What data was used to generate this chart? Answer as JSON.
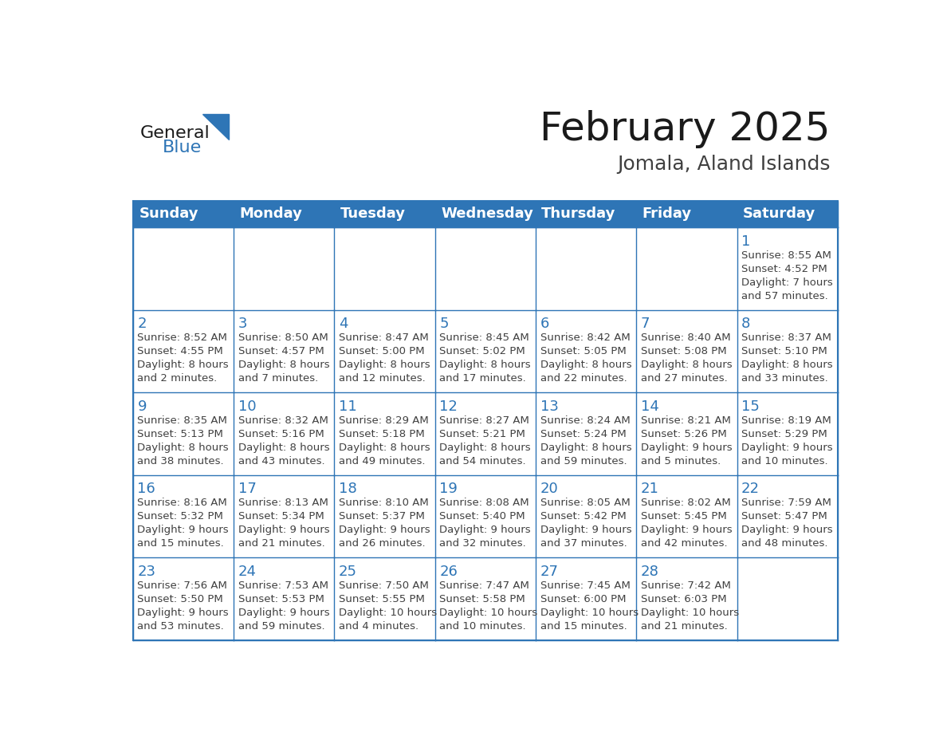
{
  "title": "February 2025",
  "subtitle": "Jomala, Aland Islands",
  "header_bg_color": "#2E75B6",
  "header_text_color": "#FFFFFF",
  "cell_border_color": "#2E75B6",
  "day_number_color": "#2E75B6",
  "info_text_color": "#404040",
  "background_color": "#FFFFFF",
  "days_of_week": [
    "Sunday",
    "Monday",
    "Tuesday",
    "Wednesday",
    "Thursday",
    "Friday",
    "Saturday"
  ],
  "weeks": [
    [
      {
        "day": null,
        "info": null
      },
      {
        "day": null,
        "info": null
      },
      {
        "day": null,
        "info": null
      },
      {
        "day": null,
        "info": null
      },
      {
        "day": null,
        "info": null
      },
      {
        "day": null,
        "info": null
      },
      {
        "day": 1,
        "info": "Sunrise: 8:55 AM\nSunset: 4:52 PM\nDaylight: 7 hours\nand 57 minutes."
      }
    ],
    [
      {
        "day": 2,
        "info": "Sunrise: 8:52 AM\nSunset: 4:55 PM\nDaylight: 8 hours\nand 2 minutes."
      },
      {
        "day": 3,
        "info": "Sunrise: 8:50 AM\nSunset: 4:57 PM\nDaylight: 8 hours\nand 7 minutes."
      },
      {
        "day": 4,
        "info": "Sunrise: 8:47 AM\nSunset: 5:00 PM\nDaylight: 8 hours\nand 12 minutes."
      },
      {
        "day": 5,
        "info": "Sunrise: 8:45 AM\nSunset: 5:02 PM\nDaylight: 8 hours\nand 17 minutes."
      },
      {
        "day": 6,
        "info": "Sunrise: 8:42 AM\nSunset: 5:05 PM\nDaylight: 8 hours\nand 22 minutes."
      },
      {
        "day": 7,
        "info": "Sunrise: 8:40 AM\nSunset: 5:08 PM\nDaylight: 8 hours\nand 27 minutes."
      },
      {
        "day": 8,
        "info": "Sunrise: 8:37 AM\nSunset: 5:10 PM\nDaylight: 8 hours\nand 33 minutes."
      }
    ],
    [
      {
        "day": 9,
        "info": "Sunrise: 8:35 AM\nSunset: 5:13 PM\nDaylight: 8 hours\nand 38 minutes."
      },
      {
        "day": 10,
        "info": "Sunrise: 8:32 AM\nSunset: 5:16 PM\nDaylight: 8 hours\nand 43 minutes."
      },
      {
        "day": 11,
        "info": "Sunrise: 8:29 AM\nSunset: 5:18 PM\nDaylight: 8 hours\nand 49 minutes."
      },
      {
        "day": 12,
        "info": "Sunrise: 8:27 AM\nSunset: 5:21 PM\nDaylight: 8 hours\nand 54 minutes."
      },
      {
        "day": 13,
        "info": "Sunrise: 8:24 AM\nSunset: 5:24 PM\nDaylight: 8 hours\nand 59 minutes."
      },
      {
        "day": 14,
        "info": "Sunrise: 8:21 AM\nSunset: 5:26 PM\nDaylight: 9 hours\nand 5 minutes."
      },
      {
        "day": 15,
        "info": "Sunrise: 8:19 AM\nSunset: 5:29 PM\nDaylight: 9 hours\nand 10 minutes."
      }
    ],
    [
      {
        "day": 16,
        "info": "Sunrise: 8:16 AM\nSunset: 5:32 PM\nDaylight: 9 hours\nand 15 minutes."
      },
      {
        "day": 17,
        "info": "Sunrise: 8:13 AM\nSunset: 5:34 PM\nDaylight: 9 hours\nand 21 minutes."
      },
      {
        "day": 18,
        "info": "Sunrise: 8:10 AM\nSunset: 5:37 PM\nDaylight: 9 hours\nand 26 minutes."
      },
      {
        "day": 19,
        "info": "Sunrise: 8:08 AM\nSunset: 5:40 PM\nDaylight: 9 hours\nand 32 minutes."
      },
      {
        "day": 20,
        "info": "Sunrise: 8:05 AM\nSunset: 5:42 PM\nDaylight: 9 hours\nand 37 minutes."
      },
      {
        "day": 21,
        "info": "Sunrise: 8:02 AM\nSunset: 5:45 PM\nDaylight: 9 hours\nand 42 minutes."
      },
      {
        "day": 22,
        "info": "Sunrise: 7:59 AM\nSunset: 5:47 PM\nDaylight: 9 hours\nand 48 minutes."
      }
    ],
    [
      {
        "day": 23,
        "info": "Sunrise: 7:56 AM\nSunset: 5:50 PM\nDaylight: 9 hours\nand 53 minutes."
      },
      {
        "day": 24,
        "info": "Sunrise: 7:53 AM\nSunset: 5:53 PM\nDaylight: 9 hours\nand 59 minutes."
      },
      {
        "day": 25,
        "info": "Sunrise: 7:50 AM\nSunset: 5:55 PM\nDaylight: 10 hours\nand 4 minutes."
      },
      {
        "day": 26,
        "info": "Sunrise: 7:47 AM\nSunset: 5:58 PM\nDaylight: 10 hours\nand 10 minutes."
      },
      {
        "day": 27,
        "info": "Sunrise: 7:45 AM\nSunset: 6:00 PM\nDaylight: 10 hours\nand 15 minutes."
      },
      {
        "day": 28,
        "info": "Sunrise: 7:42 AM\nSunset: 6:03 PM\nDaylight: 10 hours\nand 21 minutes."
      },
      {
        "day": null,
        "info": null
      }
    ]
  ],
  "logo_general_color": "#1a1a1a",
  "logo_blue_color": "#2E75B6",
  "title_fontsize": 36,
  "subtitle_fontsize": 18,
  "header_fontsize": 13,
  "day_number_fontsize": 13,
  "info_fontsize": 9.5
}
